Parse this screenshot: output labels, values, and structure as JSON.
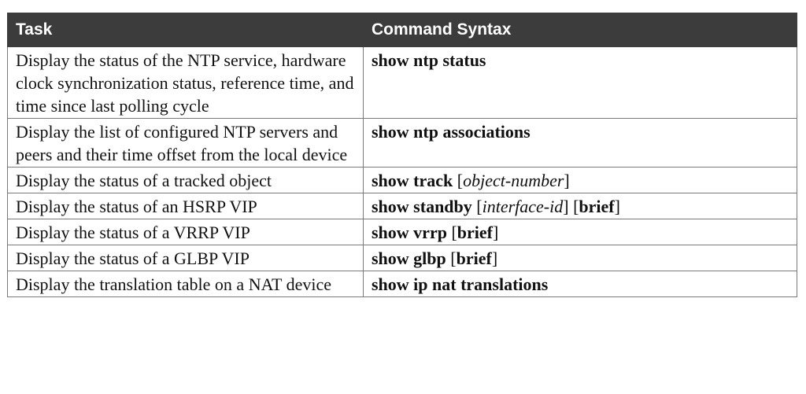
{
  "table": {
    "headers": [
      "Task",
      "Command Syntax"
    ],
    "rows": [
      {
        "task": "Display the status of the NTP service, hardware clock synchronization status, reference time, and time since last polling cycle",
        "command": [
          {
            "text": "show ntp status",
            "style": "kw"
          }
        ]
      },
      {
        "task": "Display the list of configured NTP servers and peers and their time offset from the local device",
        "command": [
          {
            "text": "show ntp associations",
            "style": "kw"
          }
        ]
      },
      {
        "task": "Display the status of a tracked object",
        "command": [
          {
            "text": "show track",
            "style": "kw"
          },
          {
            "text": " [",
            "style": "plain"
          },
          {
            "text": "object-number",
            "style": "arg"
          },
          {
            "text": "]",
            "style": "plain"
          }
        ]
      },
      {
        "task": "Display the status of an HSRP VIP",
        "command": [
          {
            "text": "show standby",
            "style": "kw"
          },
          {
            "text": " [",
            "style": "plain"
          },
          {
            "text": "interface-id",
            "style": "arg"
          },
          {
            "text": "] [",
            "style": "plain"
          },
          {
            "text": "brief",
            "style": "kw"
          },
          {
            "text": "]",
            "style": "plain"
          }
        ]
      },
      {
        "task": "Display the status of a VRRP VIP",
        "command": [
          {
            "text": "show vrrp",
            "style": "kw"
          },
          {
            "text": " [",
            "style": "plain"
          },
          {
            "text": "brief",
            "style": "kw"
          },
          {
            "text": "]",
            "style": "plain"
          }
        ]
      },
      {
        "task": "Display the status of a GLBP VIP",
        "command": [
          {
            "text": "show glbp",
            "style": "kw"
          },
          {
            "text": " [",
            "style": "plain"
          },
          {
            "text": "brief",
            "style": "kw"
          },
          {
            "text": "]",
            "style": "plain"
          }
        ]
      },
      {
        "task": "Display the translation table on a NAT device",
        "command": [
          {
            "text": "show ip nat translations",
            "style": "kw"
          }
        ]
      }
    ]
  }
}
